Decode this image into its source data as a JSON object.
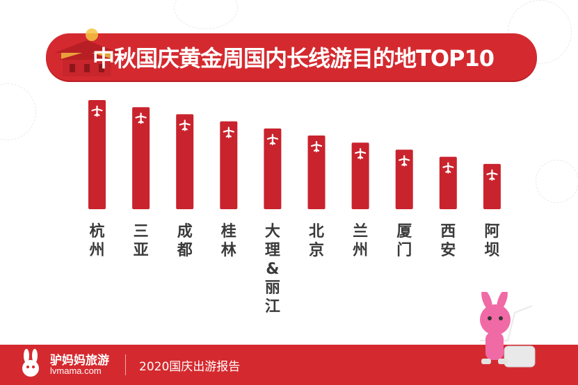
{
  "title": "中秋国庆黄金周国内长线游目的地TOP10",
  "colors": {
    "bar": "#c9232d",
    "banner": "#d42a2f",
    "label": "#3a3a3a"
  },
  "chart_data": {
    "type": "bar",
    "title": "中秋国庆黄金周国内长线游目的地TOP10",
    "categories": [
      "杭州",
      "三亚",
      "成都",
      "桂林",
      "大理&丽江",
      "北京",
      "兰州",
      "厦门",
      "西安",
      "阿坝"
    ],
    "values": [
      10,
      9.35,
      8.7,
      8.05,
      7.4,
      6.75,
      6.1,
      5.45,
      4.8,
      4.15
    ],
    "bar_icon": "airplane-icon",
    "xlabel": "",
    "ylabel": "",
    "grid": false,
    "legend": "none"
  },
  "footer": {
    "logo_name": "驴妈妈旅游",
    "logo_url": "lvmama.com",
    "report": "2020国庆出游报告"
  }
}
